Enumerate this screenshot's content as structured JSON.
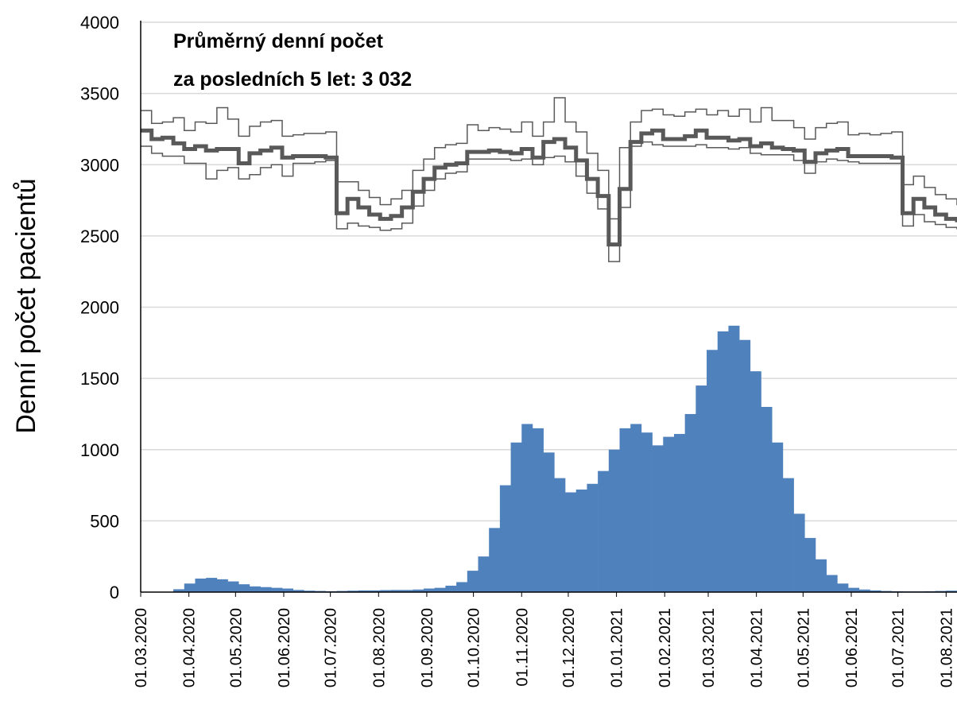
{
  "chart_data": {
    "type": "combo",
    "annotation": [
      "Průměrný denní počet",
      "za posledních 5 let: 3 032"
    ],
    "ylabel": "Denní počet pacientů",
    "x": [
      "01.03.2020",
      "08.03.2020",
      "15.03.2020",
      "22.03.2020",
      "29.03.2020",
      "05.04.2020",
      "12.04.2020",
      "19.04.2020",
      "26.04.2020",
      "03.05.2020",
      "10.05.2020",
      "17.05.2020",
      "24.05.2020",
      "31.05.2020",
      "07.06.2020",
      "14.06.2020",
      "21.06.2020",
      "28.06.2020",
      "05.07.2020",
      "12.07.2020",
      "19.07.2020",
      "26.07.2020",
      "02.08.2020",
      "09.08.2020",
      "16.08.2020",
      "23.08.2020",
      "30.08.2020",
      "06.09.2020",
      "13.09.2020",
      "20.09.2020",
      "27.09.2020",
      "04.10.2020",
      "11.10.2020",
      "18.10.2020",
      "25.10.2020",
      "01.11.2020",
      "08.11.2020",
      "15.11.2020",
      "22.11.2020",
      "29.11.2020",
      "06.12.2020",
      "13.12.2020",
      "20.12.2020",
      "27.12.2020",
      "03.01.2021",
      "10.01.2021",
      "17.01.2021",
      "24.01.2021",
      "31.01.2021",
      "07.02.2021",
      "14.02.2021",
      "21.02.2021",
      "28.02.2021",
      "07.03.2021",
      "14.03.2021",
      "21.03.2021",
      "28.03.2021",
      "04.04.2021",
      "11.04.2021",
      "18.04.2021",
      "25.04.2021",
      "02.05.2021",
      "09.05.2021",
      "16.05.2021",
      "23.05.2021",
      "30.05.2021",
      "06.06.2021",
      "13.06.2021",
      "20.06.2021",
      "27.06.2021",
      "04.07.2021",
      "11.07.2021",
      "18.07.2021",
      "25.07.2021",
      "01.08.2021",
      "08.08.2021"
    ],
    "series": [
      {
        "type": "bar",
        "color": "#4f81bd",
        "values": [
          0,
          0,
          0,
          20,
          60,
          95,
          100,
          90,
          75,
          55,
          40,
          35,
          30,
          25,
          15,
          10,
          8,
          6,
          8,
          10,
          12,
          12,
          14,
          15,
          15,
          18,
          25,
          30,
          45,
          70,
          150,
          250,
          450,
          750,
          1050,
          1180,
          1150,
          980,
          800,
          700,
          720,
          760,
          850,
          1000,
          1150,
          1180,
          1120,
          1030,
          1090,
          1110,
          1250,
          1450,
          1700,
          1830,
          1870,
          1770,
          1550,
          1300,
          1050,
          800,
          550,
          380,
          230,
          120,
          60,
          30,
          18,
          12,
          8,
          6,
          5,
          5,
          6,
          8,
          10,
          12
        ]
      },
      {
        "type": "line",
        "color": "#595959",
        "width": 1.5,
        "values": [
          3380,
          3290,
          3300,
          3330,
          3240,
          3300,
          3290,
          3400,
          3320,
          3200,
          3270,
          3300,
          3310,
          3200,
          3210,
          3220,
          3220,
          3230,
          2880,
          2880,
          2820,
          2770,
          2720,
          2760,
          2820,
          2960,
          3040,
          3120,
          3140,
          3150,
          3280,
          3240,
          3260,
          3250,
          3230,
          3300,
          3200,
          3300,
          3470,
          3300,
          3230,
          3080,
          2960,
          2620,
          3120,
          3300,
          3380,
          3390,
          3350,
          3340,
          3370,
          3390,
          3350,
          3380,
          3340,
          3390,
          3300,
          3400,
          3310,
          3310,
          3260,
          3180,
          3260,
          3290,
          3300,
          3210,
          3220,
          3210,
          3220,
          3230,
          2860,
          2920,
          2840,
          2790,
          2760,
          2720
        ]
      },
      {
        "type": "line",
        "color": "#595959",
        "width": 5,
        "values": [
          3240,
          3180,
          3190,
          3150,
          3110,
          3130,
          3100,
          3110,
          3110,
          3010,
          3080,
          3100,
          3120,
          3050,
          3060,
          3060,
          3060,
          3050,
          2660,
          2760,
          2700,
          2650,
          2620,
          2640,
          2700,
          2810,
          2900,
          2980,
          3000,
          3010,
          3090,
          3090,
          3100,
          3090,
          3080,
          3110,
          3050,
          3160,
          3180,
          3120,
          3030,
          2900,
          2780,
          2440,
          2830,
          3160,
          3220,
          3240,
          3180,
          3180,
          3200,
          3240,
          3190,
          3190,
          3170,
          3180,
          3130,
          3150,
          3120,
          3110,
          3100,
          3020,
          3080,
          3100,
          3110,
          3060,
          3060,
          3060,
          3060,
          3050,
          2660,
          2760,
          2700,
          2650,
          2620,
          2610
        ]
      },
      {
        "type": "line",
        "color": "#595959",
        "width": 1.5,
        "values": [
          3130,
          3080,
          3060,
          3060,
          3010,
          3010,
          2900,
          2960,
          2980,
          2900,
          2930,
          2980,
          3000,
          2920,
          3010,
          3010,
          3020,
          3030,
          2550,
          2590,
          2570,
          2560,
          2540,
          2550,
          2590,
          2710,
          2820,
          2900,
          2940,
          2950,
          3040,
          3040,
          3040,
          3040,
          3030,
          3040,
          3000,
          3050,
          3060,
          3020,
          2920,
          2800,
          2690,
          2320,
          2700,
          3130,
          3160,
          3140,
          3130,
          3130,
          3130,
          3140,
          3120,
          3120,
          3110,
          3120,
          3080,
          3070,
          3070,
          3070,
          3030,
          2940,
          3020,
          3040,
          3030,
          3020,
          3010,
          3010,
          3010,
          3010,
          2570,
          2650,
          2600,
          2580,
          2560,
          2550
        ]
      }
    ],
    "xlim": [
      "01.03.2020",
      "08.08.2021"
    ],
    "xticks": [
      "01.03.2020",
      "01.04.2020",
      "01.05.2020",
      "01.06.2020",
      "01.07.2020",
      "01.08.2020",
      "01.09.2020",
      "01.10.2020",
      "01.11.2020",
      "01.12.2020",
      "01.01.2021",
      "01.02.2021",
      "01.03.2021",
      "01.04.2021",
      "01.05.2021",
      "01.06.2021",
      "01.07.2021",
      "01.08.2021"
    ],
    "ylim": [
      0,
      4000
    ],
    "yticks": [
      0,
      500,
      1000,
      1500,
      2000,
      2500,
      3000,
      3500,
      4000
    ],
    "grid": true
  }
}
